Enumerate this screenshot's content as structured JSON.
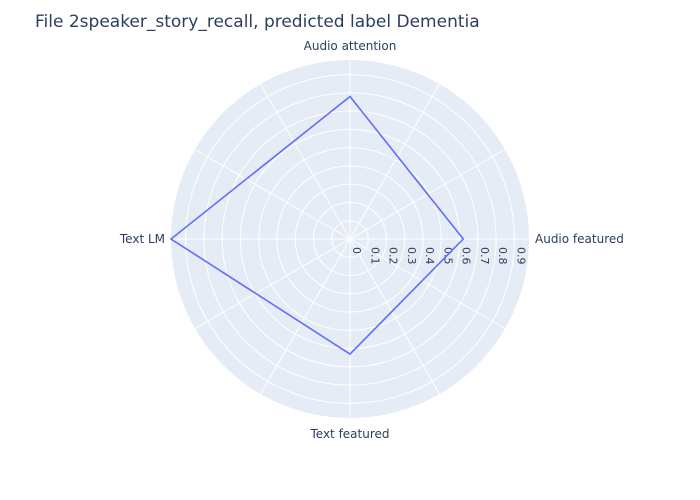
{
  "chart_data": {
    "type": "radar",
    "title": "File 2speaker_story_recall, predicted label Dementia",
    "axes": [
      "Audio attention",
      "Audio featured",
      "Text featured",
      "Text LM"
    ],
    "series": [
      {
        "values": [
          0.78,
          0.62,
          0.63,
          0.98
        ]
      }
    ],
    "r_range": [
      0,
      0.98
    ],
    "r_ticks": [
      "0",
      "0.1",
      "0.2",
      "0.3",
      "0.4",
      "0.5",
      "0.6",
      "0.7",
      "0.8",
      "0.9"
    ],
    "grid": true,
    "legend": "none",
    "colors": {
      "line": "#636efa",
      "background": "#e5ecf6",
      "grid": "#ffffff",
      "text": "#2a3f5f"
    }
  }
}
